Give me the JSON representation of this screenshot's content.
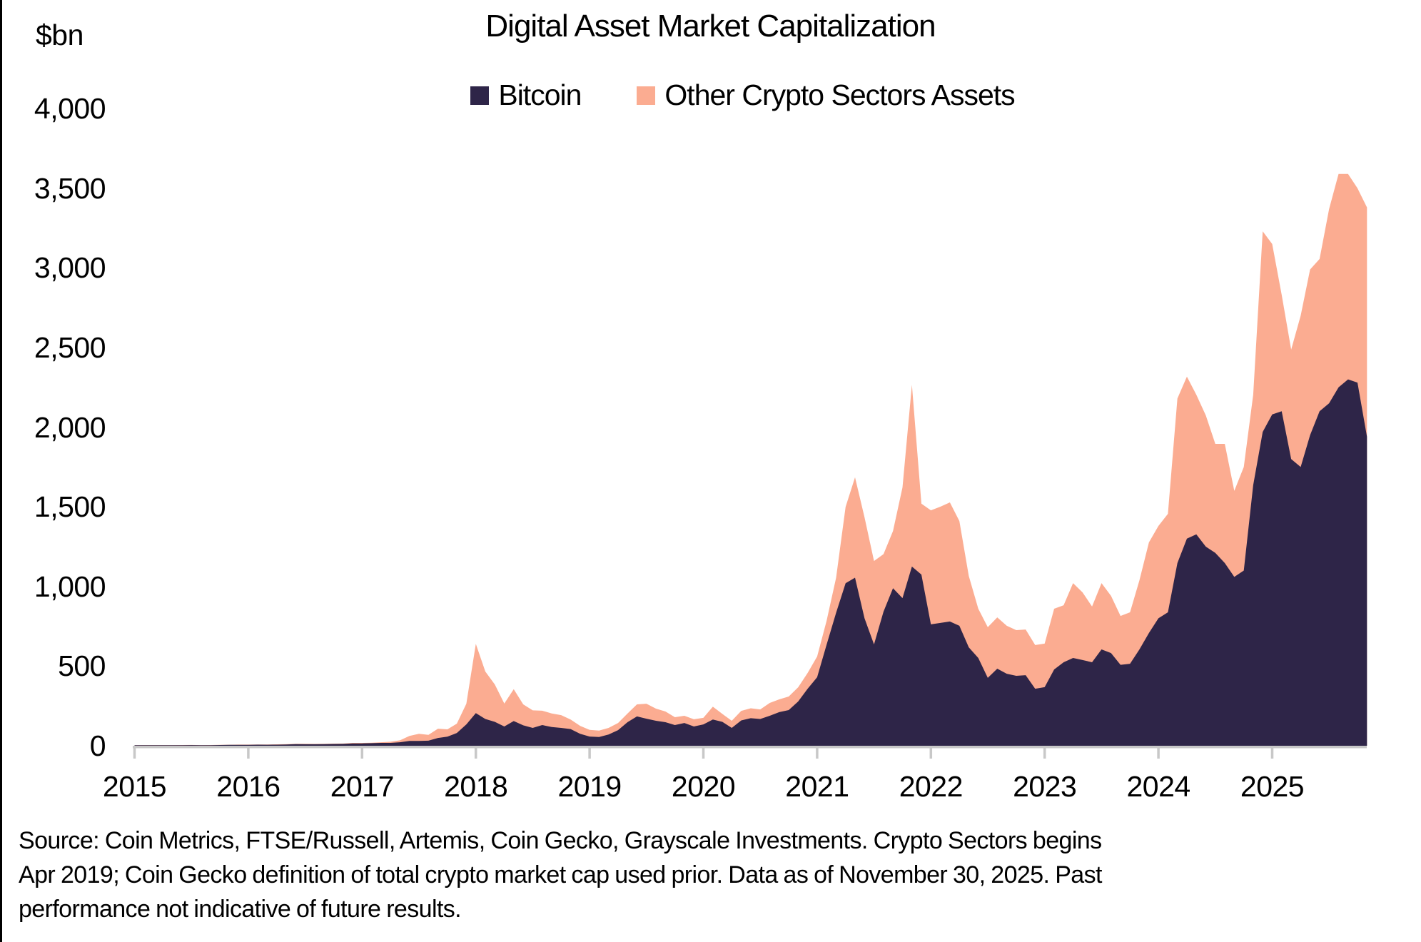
{
  "chart_data": {
    "type": "area",
    "stacked": true,
    "title": "Digital Asset Market Capitalization",
    "ylabel": "$bn",
    "x_start": "2015-01",
    "x_end": "2025-11",
    "frequency": "monthly",
    "grid": false,
    "legend_position": "top-center",
    "ylim": [
      0,
      4000
    ],
    "yticks": [
      "0",
      "500",
      "1,000",
      "1,500",
      "2,000",
      "2,500",
      "3,000",
      "3,500",
      "4,000"
    ],
    "xticks": [
      "2015",
      "2016",
      "2017",
      "2018",
      "2019",
      "2020",
      "2021",
      "2022",
      "2023",
      "2024",
      "2025"
    ],
    "colors": {
      "bitcoin": "#2e2548",
      "other": "#fbac91",
      "axis": "#c8c8c8",
      "text": "#000000",
      "background": "#ffffff",
      "left_border": "#000000"
    },
    "series": [
      {
        "name": "Bitcoin",
        "color": "#2e2548",
        "values": [
          3,
          3.5,
          3.4,
          3.3,
          3.3,
          3.8,
          4,
          3.4,
          3.5,
          4.6,
          5.3,
          6,
          5.7,
          6.6,
          6.3,
          6.8,
          8.2,
          10,
          9.6,
          9.2,
          9.8,
          11,
          11.7,
          15,
          15,
          16,
          18,
          18,
          22,
          30,
          30,
          32,
          49,
          57,
          80,
          134,
          205,
          168,
          150,
          121,
          155,
          128,
          112,
          130,
          118,
          112,
          105,
          75,
          58,
          55,
          71,
          98,
          148,
          184,
          170,
          157,
          148,
          130,
          143,
          121,
          134,
          165,
          150,
          112,
          159,
          173,
          168,
          188,
          211,
          224,
          278,
          358,
          430,
          635,
          835,
          1020,
          1055,
          800,
          636,
          842,
          989,
          927,
          1125,
          1075,
          762,
          771,
          780,
          753,
          618,
          551,
          426,
          484,
          452,
          439,
          443,
          358,
          368,
          479,
          524,
          551,
          538,
          524,
          605,
          582,
          508,
          515,
          605,
          708,
          800,
          838,
          1147,
          1300,
          1327,
          1250,
          1211,
          1147,
          1060,
          1100,
          1636,
          1970,
          2080,
          2100,
          1800,
          1750,
          1950,
          2100,
          2150,
          2250,
          2300,
          2280,
          1940
        ]
      },
      {
        "name": "Other Crypto Sectors Assets",
        "color": "#fbac91",
        "values": [
          0.7,
          0.7,
          0.7,
          0.7,
          0.7,
          0.8,
          0.9,
          0.8,
          0.8,
          0.9,
          1,
          1.1,
          1.3,
          1.6,
          1.9,
          2,
          2.3,
          2.7,
          2.5,
          2.4,
          2.4,
          2.3,
          2.4,
          2.7,
          3,
          3,
          4,
          7,
          12,
          32,
          45,
          36,
          58,
          46,
          59,
          130,
          435,
          298,
          235,
          144,
          200,
          132,
          110,
          90,
          85,
          80,
          60,
          50,
          42,
          40,
          41,
          45,
          54,
          76,
          94,
          76,
          67,
          49,
          45,
          45,
          41,
          80,
          50,
          45,
          60,
          62,
          60,
          81,
          80,
          85,
          89,
          99,
          130,
          150,
          220,
          480,
          630,
          634,
          524,
          361,
          359,
          695,
          1141,
          445,
          716,
          730,
          748,
          658,
          448,
          309,
          318,
          322,
          301,
          287,
          287,
          274,
          273,
          381,
          358,
          470,
          425,
          350,
          416,
          359,
          307,
          323,
          434,
          569,
          580,
          618,
          1033,
          1017,
          877,
          824,
          684,
          748,
          540,
          650,
          568,
          1260,
          1070,
          731,
          687,
          950,
          1040,
          956,
          1219,
          1340,
          1290,
          1220,
          1440
        ]
      }
    ]
  },
  "footnote_lines": [
    "Source: Coin Metrics, FTSE/Russell, Artemis, Coin Gecko, Grayscale Investments. Crypto Sectors begins",
    "Apr 2019; Coin Gecko definition of total crypto market cap used prior. Data as of November 30, 2025. Past",
    "performance not indicative of future results."
  ]
}
